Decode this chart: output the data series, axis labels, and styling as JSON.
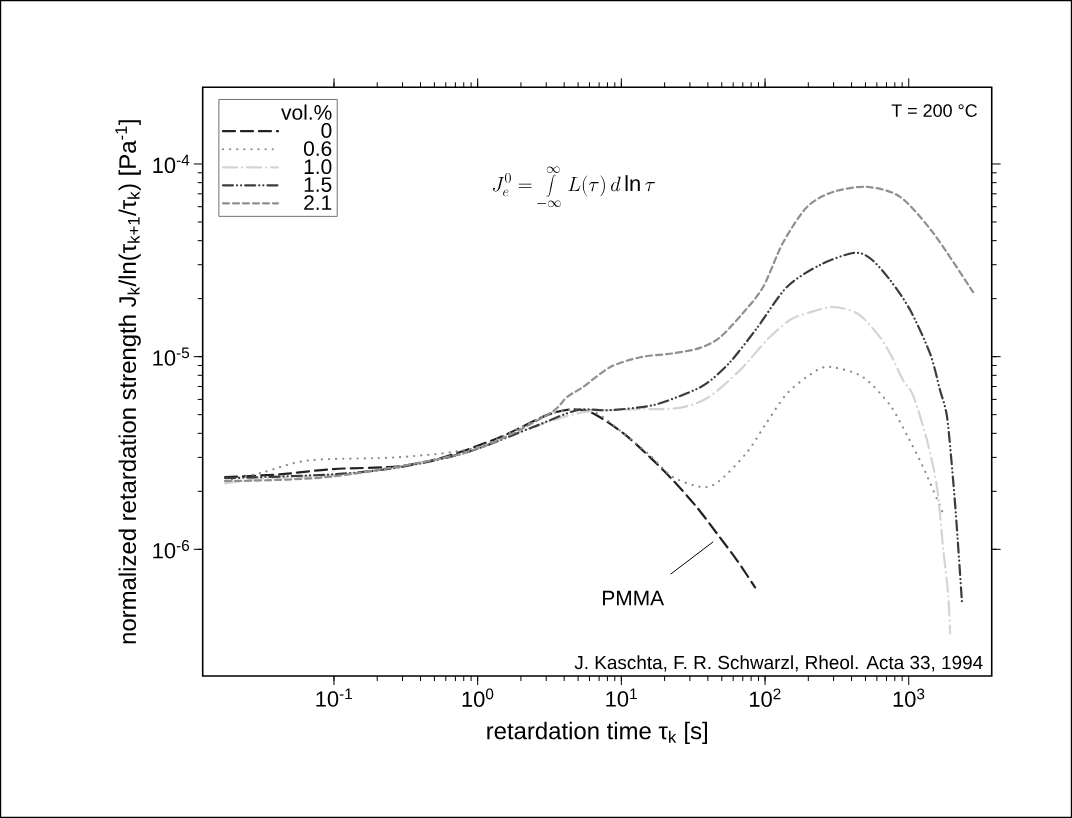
{
  "chart_data": {
    "type": "line",
    "xlabel": "retardation time τ$_{k}$ [s]",
    "ylabel": "normalized retardation strength J$_{k}$/ln(τ$_{k+1}$/τ$_{k}$) [Pa$^{-1}$]",
    "legend_title": "vol.%",
    "legend": "top left",
    "log": "xy",
    "xlim": [
      0.0122,
      3780
    ],
    "ylim": [
      2.2e-07,
      0.00025
    ],
    "xticks": [
      {
        "value": 0.1,
        "label": "10$^{-1}$"
      },
      {
        "value": 1,
        "label": "10$^{0}$"
      },
      {
        "value": 10,
        "label": "10$^{1}$"
      },
      {
        "value": 100,
        "label": "10$^{2}$"
      },
      {
        "value": 1000,
        "label": "10$^{3}$"
      }
    ],
    "yticks": [
      {
        "value": 1e-06,
        "label": "10$^{-6}$"
      },
      {
        "value": 1e-05,
        "label": "10$^{-5}$"
      },
      {
        "value": 0.0001,
        "label": "10$^{-4}$"
      }
    ],
    "annotations": [
      "T = 200 °C",
      "J_e^0=\\int\\limits_{-\\infty}^{\\infty} L(\\tau)\\,d\\ln\\tau",
      "J. Kaschta, F. R. Schwarzl, Rheol. Acta 33, 1994",
      "PMMA"
    ],
    "series": [
      {
        "name": "0",
        "color": "#222222",
        "line_style": "dashed",
        "x": [
          0.0175,
          0.042,
          0.099,
          0.288,
          0.611,
          1.43,
          3.03,
          4.6,
          6.34,
          10.3,
          15.8,
          22.9,
          33.6,
          46.2,
          63.8,
          85.2
        ],
        "values": [
          2.37e-06,
          2.45e-06,
          2.61e-06,
          2.7e-06,
          3.04e-06,
          3.82e-06,
          4.97e-06,
          5.33e-06,
          5.08e-06,
          4.01e-06,
          3.01e-06,
          2.28e-06,
          1.65e-06,
          1.21e-06,
          8.77e-07,
          6.35e-07
        ]
      },
      {
        "name": "0.6",
        "color": "#8c8c8c",
        "line_style": "dotted",
        "x": [
          0.0175,
          0.0321,
          0.068,
          0.288,
          0.99,
          3.03,
          6.04,
          10.3,
          15.8,
          22.9,
          37,
          48.6,
          75,
          103,
          145,
          230,
          297,
          481,
          741,
          989,
          1259,
          1734
        ],
        "values": [
          2.26e-06,
          2.51e-06,
          2.9e-06,
          3.01e-06,
          3.39e-06,
          4.97e-06,
          5.27e-06,
          4.01e-06,
          3.08e-06,
          2.37e-06,
          2.1e-06,
          2.28e-06,
          3.19e-06,
          4.57e-06,
          6.54e-06,
          8.51e-06,
          8.81e-06,
          7.83e-06,
          5.6e-06,
          3.82e-06,
          2.67e-06,
          1.54e-06
        ]
      },
      {
        "name": "1.0",
        "color": "#d4d4d4",
        "line_style": "dash-dot",
        "x": [
          0.0175,
          0.0343,
          0.099,
          0.288,
          0.843,
          2.43,
          5.41,
          12.1,
          24.4,
          39.4,
          67,
          103,
          149,
          206,
          297,
          437,
          601,
          741,
          912,
          1071,
          1340,
          1574,
          1734,
          1879,
          1941
        ],
        "values": [
          2.2e-06,
          2.34e-06,
          2.42e-06,
          2.67e-06,
          3.19e-06,
          4.31e-06,
          5.15e-06,
          5.33e-06,
          5.4e-06,
          6.08e-06,
          8.51e-06,
          1.22e-05,
          1.55e-05,
          1.7e-05,
          1.81e-05,
          1.68e-05,
          1.32e-05,
          1.04e-05,
          7.55e-06,
          6.31e-06,
          3.68e-06,
          2.1e-06,
          1.02e-06,
          5.9e-07,
          3.66e-07
        ]
      },
      {
        "name": "1.5",
        "color": "#3c3c3c",
        "line_style": "dash-dot-dot",
        "x": [
          0.0175,
          0.099,
          0.288,
          0.843,
          2.43,
          4.92,
          8.33,
          16.6,
          28.6,
          39.4,
          57,
          88,
          142,
          241,
          409,
          537,
          741,
          1021,
          1406,
          1652,
          1849,
          2037,
          2168,
          2350
        ],
        "values": [
          2.34e-06,
          2.45e-06,
          2.67e-06,
          3.19e-06,
          4.31e-06,
          5.27e-06,
          5.27e-06,
          5.6e-06,
          6.46e-06,
          7.28e-06,
          9.35e-06,
          1.41e-05,
          2.3e-05,
          2.99e-05,
          3.45e-05,
          3.25e-05,
          2.5e-05,
          1.75e-05,
          1.04e-05,
          6.7e-06,
          4.85e-06,
          2.28e-06,
          1.26e-06,
          5.24e-07
        ]
      },
      {
        "name": "2.1",
        "color": "#909090",
        "line_style": "short-dashed",
        "x": [
          0.0175,
          0.099,
          0.843,
          3.03,
          4.18,
          5.41,
          8.33,
          13.5,
          22.9,
          35.3,
          48.6,
          70,
          97,
          133,
          196,
          297,
          513,
          871,
          1479,
          2805
        ],
        "values": [
          2.26e-06,
          2.39e-06,
          3.19e-06,
          4.97e-06,
          6.17e-06,
          6.95e-06,
          8.81e-06,
          9.93e-06,
          1.04e-05,
          1.11e-05,
          1.26e-05,
          1.68e-05,
          2.3e-05,
          3.89e-05,
          5.98e-05,
          7.16e-05,
          7.6e-05,
          6.75e-05,
          4.39e-05,
          2.16e-05
        ]
      }
    ]
  }
}
